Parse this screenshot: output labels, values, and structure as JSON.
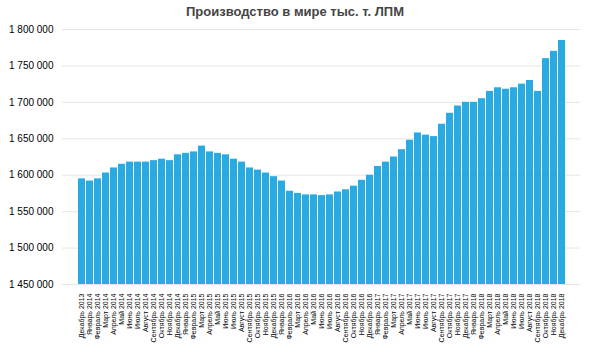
{
  "chart_data": {
    "type": "bar",
    "title": "Производство в мире тыс. т. ЛПМ",
    "categories": [
      "Декабрь 2013",
      "Январь 2014",
      "Февраль 2014",
      "Март 2014",
      "Апрель 2014",
      "Май 2014",
      "Июнь 2014",
      "Июль 2014",
      "Август 2014",
      "Сентябрь 2014",
      "Октябрь 2014",
      "Ноябрь 2014",
      "Декабрь 2014",
      "Январь 2015",
      "Февраль 2015",
      "Март 2015",
      "Апрель 2015",
      "Май 2015",
      "Июнь 2015",
      "Июль 2015",
      "Август 2015",
      "Сентябрь 2015",
      "Октябрь 2015",
      "Ноябрь 2015",
      "Декабрь 2015",
      "Январь 2016",
      "Февраль 2016",
      "Март 2016",
      "Апрель 2016",
      "Май 2016",
      "Июнь 2016",
      "Июль 2016",
      "Август 2016",
      "Сентябрь 2016",
      "Октябрь 2016",
      "Ноябрь 2016",
      "Декабрь 2016",
      "Январь 2017",
      "Февраль 2017",
      "Март 2017",
      "Апрель 2017",
      "Май 2017",
      "Июнь 2017",
      "Июль 2017",
      "Август 2017",
      "Сентябрь 2017",
      "Октябрь 2017",
      "Ноябрь 2017",
      "Декабрь 2017",
      "Январь 2018",
      "Февраль 2018",
      "Март 2018",
      "Апрель 2018",
      "Май 2018",
      "Июнь 2018",
      "Июль 2018",
      "Август 2018",
      "Сентябрь 2018",
      "Октябрь 2018",
      "Ноябрь 2018",
      "Декабрь 2018"
    ],
    "values": [
      1595000,
      1592000,
      1595000,
      1603000,
      1610000,
      1615000,
      1618000,
      1618000,
      1618000,
      1620000,
      1622000,
      1620000,
      1628000,
      1630000,
      1632000,
      1640000,
      1632000,
      1630000,
      1628000,
      1622000,
      1618000,
      1610000,
      1607000,
      1603000,
      1598000,
      1592000,
      1578000,
      1575000,
      1573000,
      1573000,
      1572000,
      1573000,
      1577000,
      1580000,
      1585000,
      1593000,
      1600000,
      1612000,
      1618000,
      1625000,
      1635000,
      1648000,
      1658000,
      1655000,
      1653000,
      1670000,
      1685000,
      1695000,
      1700000,
      1700000,
      1705000,
      1715000,
      1720000,
      1718000,
      1720000,
      1725000,
      1730000,
      1715000,
      1760000,
      1770000,
      1785000
    ],
    "color": "#29ABE2",
    "ylim": [
      1450000,
      1800000
    ],
    "yticks": [
      {
        "value": 1450000,
        "label": "1 450 000"
      },
      {
        "value": 1500000,
        "label": "1 500 000"
      },
      {
        "value": 1550000,
        "label": "1 550 000"
      },
      {
        "value": 1600000,
        "label": "1 600 000"
      },
      {
        "value": 1650000,
        "label": "1 650 000"
      },
      {
        "value": 1700000,
        "label": "1 700 000"
      },
      {
        "value": 1750000,
        "label": "1 750 000"
      },
      {
        "value": 1800000,
        "label": "1 800 000"
      }
    ],
    "grid": true
  }
}
